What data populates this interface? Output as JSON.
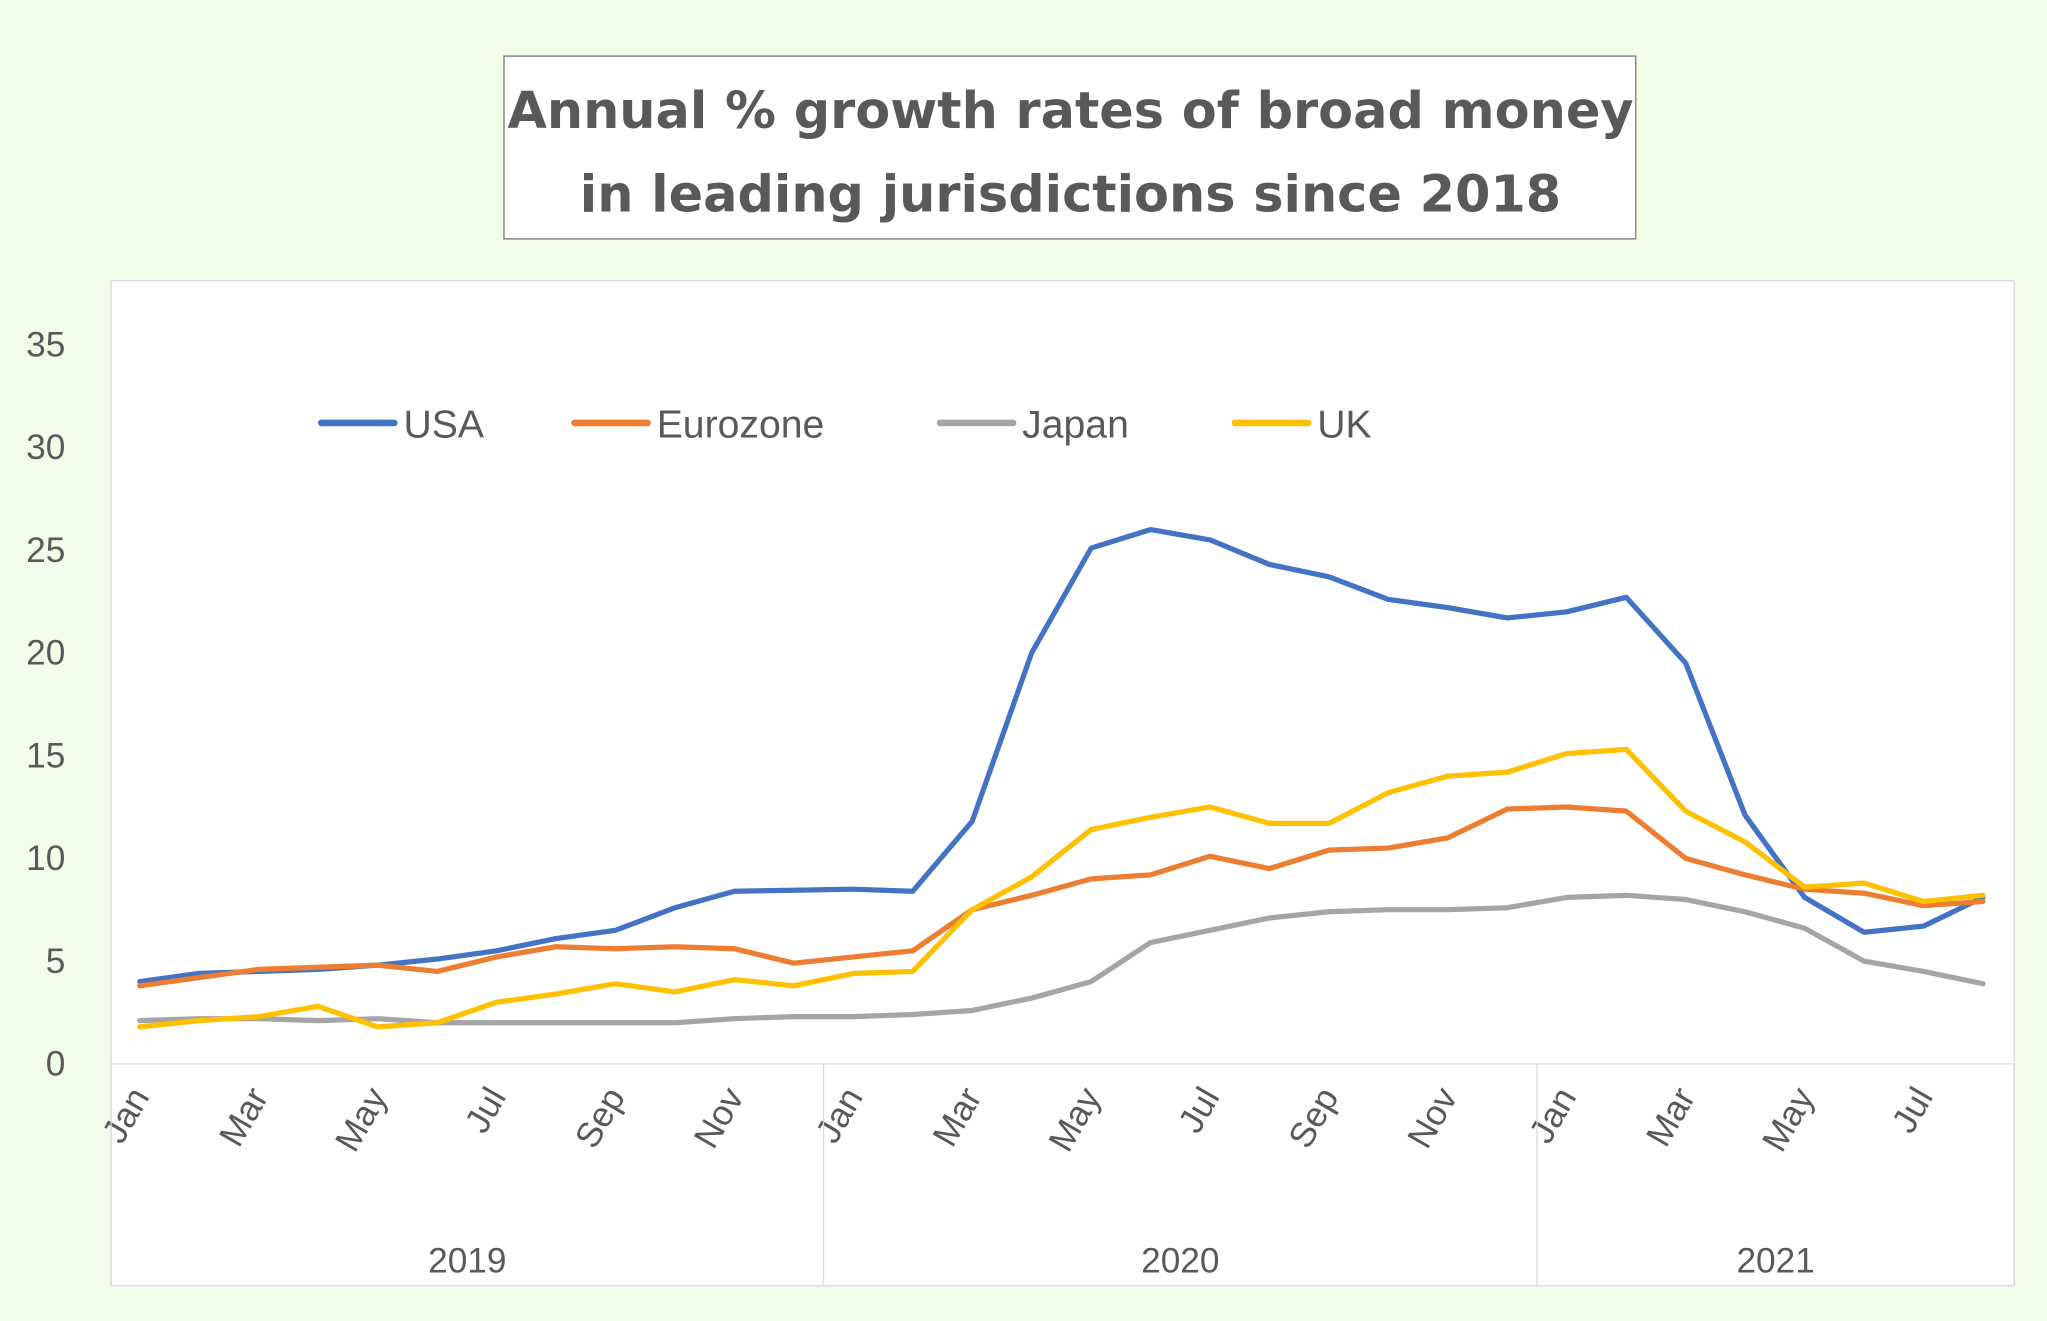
{
  "chart_data": {
    "type": "line",
    "title": [
      "Annual % growth rates of broad money",
      "in leading jurisdictions since 2018"
    ],
    "xlabel": "",
    "ylabel": "",
    "ylim": [
      0,
      35
    ],
    "yticks": [
      "0",
      "5",
      "10",
      "15",
      "20",
      "25",
      "30",
      "35"
    ],
    "grid": false,
    "legend_position": "top-left",
    "x": [
      "Jan 2019",
      "Feb 2019",
      "Mar 2019",
      "Apr 2019",
      "May 2019",
      "Jun 2019",
      "Jul 2019",
      "Aug 2019",
      "Sep 2019",
      "Oct 2019",
      "Nov 2019",
      "Dec 2019",
      "Jan 2020",
      "Feb 2020",
      "Mar 2020",
      "Apr 2020",
      "May 2020",
      "Jun 2020",
      "Jul 2020",
      "Aug 2020",
      "Sep 2020",
      "Oct 2020",
      "Nov 2020",
      "Dec 2020",
      "Jan 2021",
      "Feb 2021",
      "Mar 2021",
      "Apr 2021",
      "May 2021",
      "Jun 2021",
      "Jul 2021",
      "Aug 2021"
    ],
    "month_tick_labels": [
      "Jan",
      "",
      "Mar",
      "",
      "May",
      "",
      "Jul",
      "",
      "Sep",
      "",
      "Nov",
      "",
      "Jan",
      "",
      "Mar",
      "",
      "May",
      "",
      "Jul",
      "",
      "Sep",
      "",
      "Nov",
      "",
      "Jan",
      "",
      "Mar",
      "",
      "May",
      "",
      "Jul",
      ""
    ],
    "year_groups": [
      {
        "label": "2019",
        "months": 12
      },
      {
        "label": "2020",
        "months": 12
      },
      {
        "label": "2021",
        "months": 8
      }
    ],
    "series": [
      {
        "name": "USA",
        "color": "#4472c4",
        "values": [
          4.0,
          4.4,
          4.5,
          4.6,
          4.8,
          5.1,
          5.5,
          6.1,
          6.5,
          7.6,
          8.4,
          8.45,
          8.5,
          8.4,
          11.8,
          20.0,
          25.1,
          26.0,
          25.5,
          24.3,
          23.7,
          22.6,
          22.2,
          21.7,
          22.0,
          22.7,
          19.5,
          12.1,
          8.1,
          6.4,
          6.7,
          8.1
        ]
      },
      {
        "name": "Eurozone",
        "color": "#ed7d31",
        "values": [
          3.8,
          4.2,
          4.6,
          4.7,
          4.8,
          4.5,
          5.2,
          5.7,
          5.6,
          5.7,
          5.6,
          4.9,
          5.2,
          5.5,
          7.5,
          8.2,
          9.0,
          9.2,
          10.1,
          9.5,
          10.4,
          10.5,
          11.0,
          12.4,
          12.5,
          12.3,
          10.0,
          9.2,
          8.5,
          8.3,
          7.7,
          7.9
        ]
      },
      {
        "name": "Japan",
        "color": "#a5a5a5",
        "values": [
          2.1,
          2.2,
          2.2,
          2.1,
          2.2,
          2.0,
          2.0,
          2.0,
          2.0,
          2.0,
          2.2,
          2.3,
          2.3,
          2.4,
          2.6,
          3.2,
          4.0,
          5.9,
          6.5,
          7.1,
          7.4,
          7.5,
          7.5,
          7.6,
          8.1,
          8.2,
          8.0,
          7.4,
          6.6,
          5.0,
          4.5,
          3.9
        ]
      },
      {
        "name": "UK",
        "color": "#ffc000",
        "values": [
          1.8,
          2.1,
          2.3,
          2.8,
          1.8,
          2.0,
          3.0,
          3.4,
          3.9,
          3.5,
          4.1,
          3.8,
          4.4,
          4.5,
          7.5,
          9.1,
          11.4,
          12.0,
          12.5,
          11.7,
          11.7,
          13.2,
          14.0,
          14.2,
          15.1,
          15.3,
          12.3,
          10.8,
          8.6,
          8.8,
          7.9,
          8.2
        ]
      }
    ]
  }
}
